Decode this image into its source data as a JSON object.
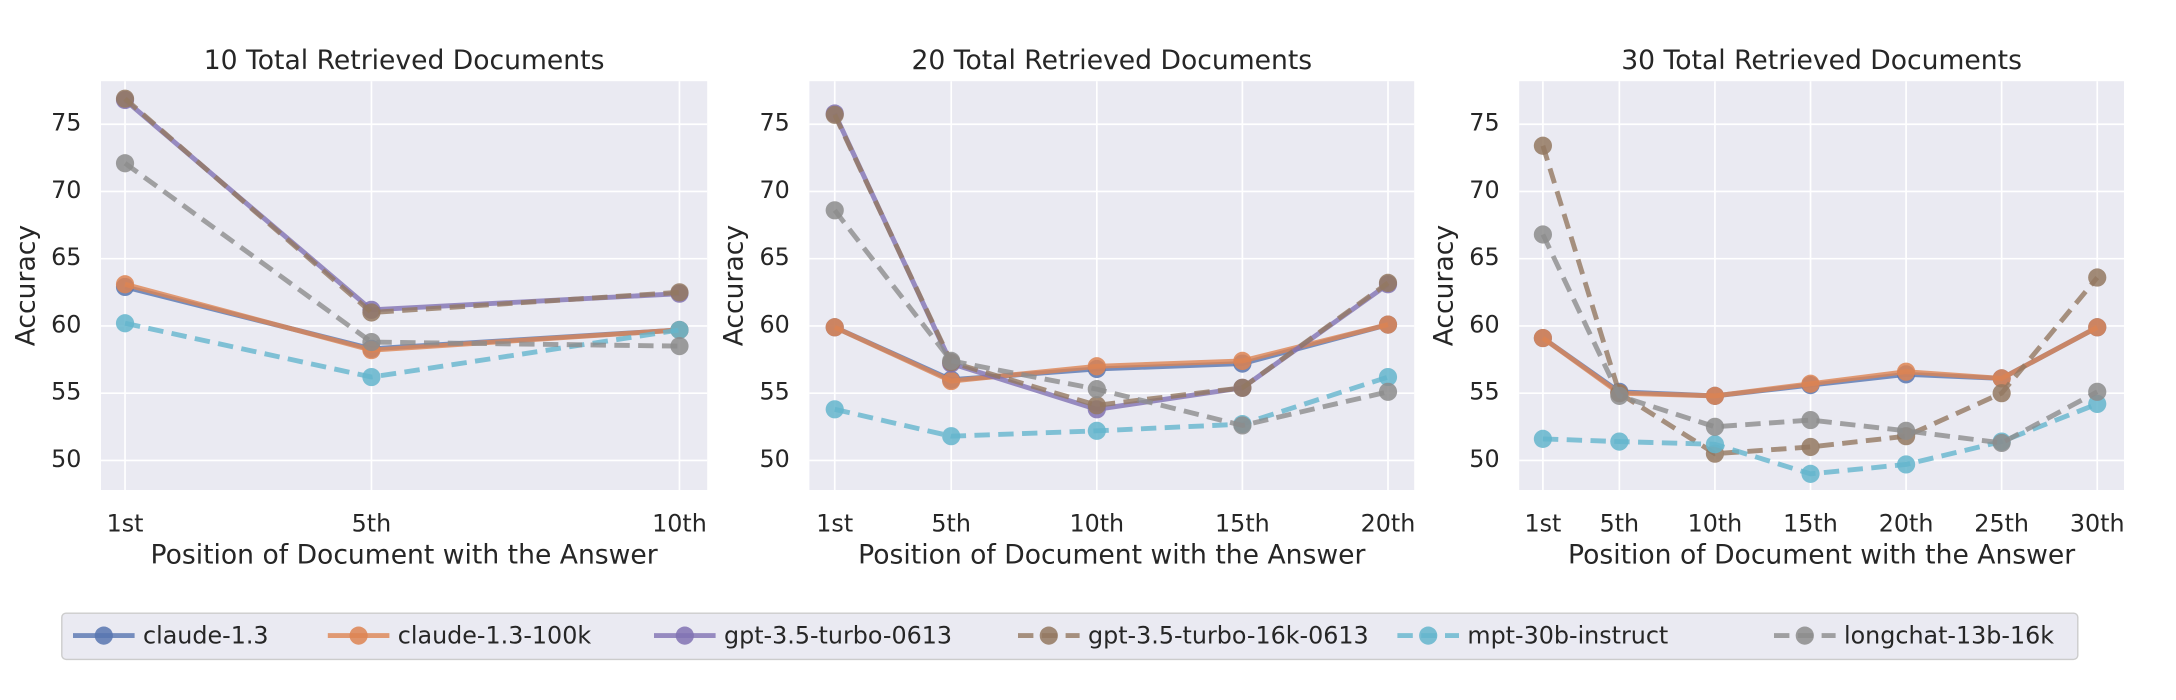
{
  "chart_data": [
    {
      "type": "line",
      "title": "10 Total Retrieved Documents",
      "xlabel": "Position of Document with the Answer",
      "ylabel": "Accuracy",
      "x": [
        1,
        5,
        10
      ],
      "xlim": [
        0.61,
        10.45
      ],
      "ylim": [
        47.8,
        78.2
      ],
      "xticks": [
        {
          "value": 1,
          "label": "1st"
        },
        {
          "value": 5,
          "label": "5th"
        },
        {
          "value": 10,
          "label": "10th"
        }
      ],
      "yticks": [
        50,
        55,
        60,
        65,
        70,
        75
      ],
      "grid": true,
      "series": [
        {
          "name": "claude-1.3",
          "color": "#5875b0",
          "dashed": false,
          "values": [
            62.9,
            58.3,
            59.7
          ]
        },
        {
          "name": "claude-1.3-100k",
          "color": "#dd8452",
          "dashed": false,
          "values": [
            63.1,
            58.2,
            59.7
          ]
        },
        {
          "name": "gpt-3.5-turbo-0613",
          "color": "#8172b3",
          "dashed": false,
          "values": [
            76.8,
            61.2,
            62.4
          ]
        },
        {
          "name": "gpt-3.5-turbo-16k-0613",
          "color": "#937860",
          "dashed": true,
          "values": [
            76.9,
            61.0,
            62.5
          ]
        },
        {
          "name": "mpt-30b-instruct",
          "color": "#64b5cd",
          "dashed": true,
          "values": [
            60.2,
            56.2,
            59.7
          ]
        },
        {
          "name": "longchat-13b-16k",
          "color": "#8c8c8c",
          "dashed": true,
          "values": [
            72.1,
            58.8,
            58.5
          ]
        }
      ]
    },
    {
      "type": "line",
      "title": "20 Total Retrieved Documents",
      "xlabel": "Position of Document with the Answer",
      "ylabel": "Accuracy",
      "x": [
        1,
        5,
        10,
        15,
        20
      ],
      "xlim": [
        0.13,
        20.9
      ],
      "ylim": [
        47.8,
        78.2
      ],
      "xticks": [
        {
          "value": 1,
          "label": "1st"
        },
        {
          "value": 5,
          "label": "5th"
        },
        {
          "value": 10,
          "label": "10th"
        },
        {
          "value": 15,
          "label": "15th"
        },
        {
          "value": 20,
          "label": "20th"
        }
      ],
      "yticks": [
        50,
        55,
        60,
        65,
        70,
        75
      ],
      "grid": true,
      "series": [
        {
          "name": "claude-1.3",
          "color": "#5875b0",
          "dashed": false,
          "values": [
            59.9,
            56.0,
            56.8,
            57.2,
            60.1
          ]
        },
        {
          "name": "claude-1.3-100k",
          "color": "#dd8452",
          "dashed": false,
          "values": [
            59.9,
            55.9,
            57.0,
            57.4,
            60.1
          ]
        },
        {
          "name": "gpt-3.5-turbo-0613",
          "color": "#8172b3",
          "dashed": false,
          "values": [
            75.8,
            57.2,
            53.8,
            55.4,
            63.1
          ]
        },
        {
          "name": "gpt-3.5-turbo-16k-0613",
          "color": "#937860",
          "dashed": true,
          "values": [
            75.7,
            57.3,
            54.1,
            55.4,
            63.2
          ]
        },
        {
          "name": "mpt-30b-instruct",
          "color": "#64b5cd",
          "dashed": true,
          "values": [
            53.8,
            51.8,
            52.2,
            52.7,
            56.2
          ]
        },
        {
          "name": "longchat-13b-16k",
          "color": "#8c8c8c",
          "dashed": true,
          "values": [
            68.6,
            57.4,
            55.3,
            52.6,
            55.1
          ]
        }
      ]
    },
    {
      "type": "line",
      "title": "30 Total Retrieved Documents",
      "xlabel": "Position of Document with the Answer",
      "ylabel": "Accuracy",
      "x": [
        1,
        5,
        10,
        15,
        20,
        25,
        30
      ],
      "xlim": [
        -0.24,
        31.4
      ],
      "ylim": [
        47.8,
        78.2
      ],
      "xticks": [
        {
          "value": 1,
          "label": "1st"
        },
        {
          "value": 5,
          "label": "5th"
        },
        {
          "value": 10,
          "label": "10th"
        },
        {
          "value": 15,
          "label": "15th"
        },
        {
          "value": 20,
          "label": "20th"
        },
        {
          "value": 25,
          "label": "25th"
        },
        {
          "value": 30,
          "label": "30th"
        }
      ],
      "yticks": [
        50,
        55,
        60,
        65,
        70,
        75
      ],
      "grid": true,
      "series": [
        {
          "name": "claude-1.3",
          "color": "#5875b0",
          "dashed": false,
          "values": [
            59.1,
            55.1,
            54.8,
            55.6,
            56.4,
            56.1,
            59.9
          ]
        },
        {
          "name": "claude-1.3-100k",
          "color": "#dd8452",
          "dashed": false,
          "values": [
            59.1,
            55.0,
            54.8,
            55.7,
            56.6,
            56.1,
            59.9
          ]
        },
        {
          "name": "gpt-3.5-turbo-16k-0613",
          "color": "#937860",
          "dashed": true,
          "values": [
            73.4,
            55.0,
            50.5,
            51.0,
            51.8,
            55.0,
            63.6
          ]
        },
        {
          "name": "mpt-30b-instruct",
          "color": "#64b5cd",
          "dashed": true,
          "values": [
            51.6,
            51.4,
            51.2,
            49.0,
            49.7,
            51.4,
            54.2
          ]
        },
        {
          "name": "longchat-13b-16k",
          "color": "#8c8c8c",
          "dashed": true,
          "values": [
            66.8,
            54.8,
            52.5,
            53.0,
            52.2,
            51.3,
            55.1
          ]
        }
      ]
    }
  ]
}
